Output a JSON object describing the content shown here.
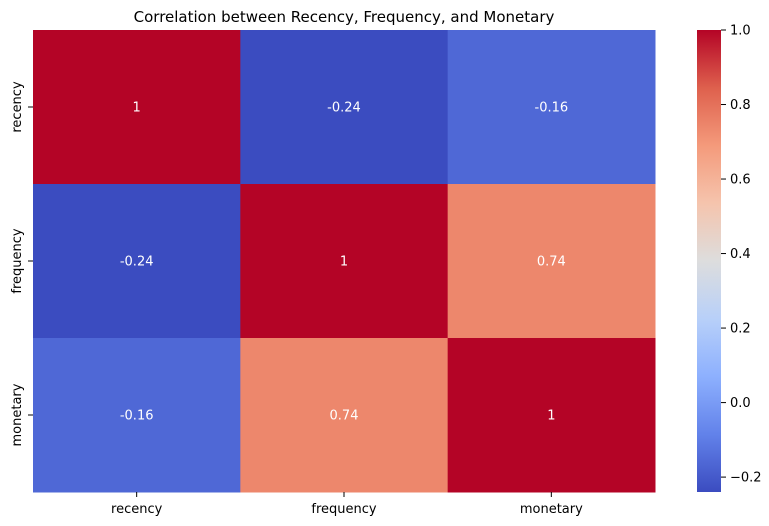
{
  "chart_data": {
    "type": "heatmap",
    "title": "Correlation between Recency, Frequency, and Monetary",
    "xlabel": "",
    "ylabel": "",
    "x_categories": [
      "recency",
      "frequency",
      "monetary"
    ],
    "y_categories": [
      "recency",
      "frequency",
      "monetary"
    ],
    "matrix": [
      [
        1,
        -0.24,
        -0.16
      ],
      [
        -0.24,
        1,
        0.74
      ],
      [
        -0.16,
        0.74,
        1
      ]
    ],
    "annotations": [
      [
        "1",
        "-0.24",
        "-0.16"
      ],
      [
        "-0.24",
        "1",
        "0.74"
      ],
      [
        "-0.16",
        "0.74",
        "1"
      ]
    ],
    "colormap": "coolwarm",
    "color_range": [
      -0.24,
      1.0
    ],
    "colorbar_ticks": [
      -0.2,
      0.0,
      0.2,
      0.4,
      0.6,
      0.8,
      1.0
    ],
    "colorbar_tick_labels": [
      "−0.2",
      "0.0",
      "0.2",
      "0.4",
      "0.6",
      "0.8",
      "1.0"
    ],
    "annotation_color": "#ffffff",
    "grid": false
  }
}
